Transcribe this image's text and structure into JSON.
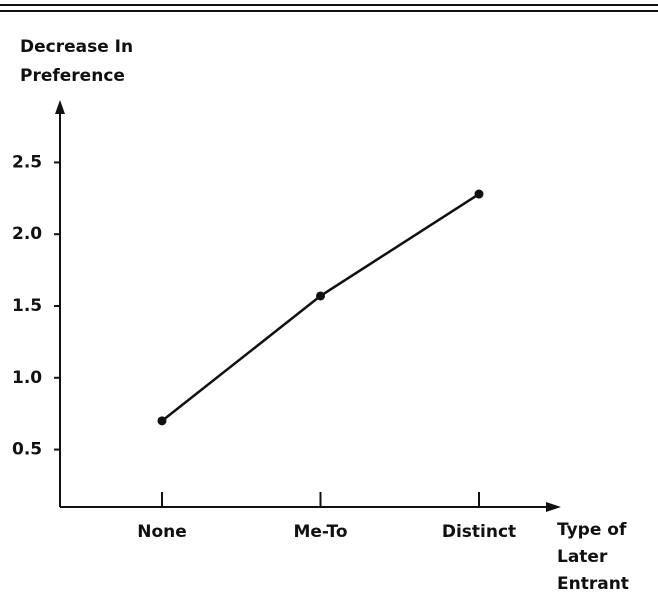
{
  "chart_data": {
    "type": "line",
    "y_label": [
      "Decrease In",
      "Preference"
    ],
    "x_label": [
      "Type of",
      "Later",
      "Entrant"
    ],
    "categories": [
      "None",
      "Me-To",
      "Distinct"
    ],
    "values": [
      0.7,
      1.57,
      2.28
    ],
    "color": "#111111",
    "ylim": [
      0.1,
      2.9
    ],
    "yticks": [
      0.5,
      {
        "value": 1,
        "label": "1.0"
      },
      1.5,
      {
        "value": 2,
        "label": "2.0"
      },
      2.5
    ],
    "grid": false
  }
}
